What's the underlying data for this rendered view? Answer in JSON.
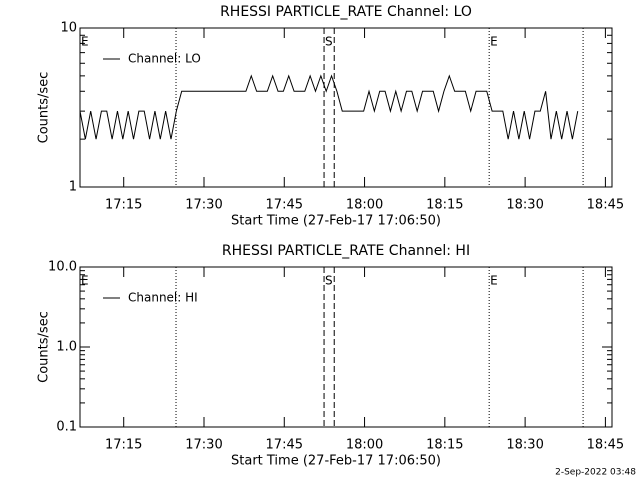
{
  "chart_data": [
    {
      "type": "line",
      "title": "RHESSI PARTICLE_RATE Channel: LO",
      "xlabel": "Start Time (27-Feb-17 17:06:50)",
      "ylabel": "Counts/sec",
      "log_y": true,
      "ylim": [
        1,
        10
      ],
      "yticks": [
        1,
        10
      ],
      "xlim": [
        0,
        99.4
      ],
      "xticks": [
        {
          "value": 8.1667,
          "label": "17:15"
        },
        {
          "value": 23.1667,
          "label": "17:30"
        },
        {
          "value": 38.1667,
          "label": "17:45"
        },
        {
          "value": 53.1667,
          "label": "18:00"
        },
        {
          "value": 68.1667,
          "label": "18:15"
        },
        {
          "value": 83.1667,
          "label": "18:30"
        },
        {
          "value": 98.1667,
          "label": "18:45"
        }
      ],
      "annotations": [
        {
          "text": "E",
          "x": 0
        },
        {
          "text": "S",
          "x": 45.6
        },
        {
          "text": "E",
          "x": 76.45
        }
      ],
      "dotted_lines": [
        17.94,
        76.45,
        94.0
      ],
      "dashed_lines": [
        45.6,
        47.5
      ],
      "legend": "upper left",
      "x": [
        0,
        1,
        2,
        3,
        4,
        5,
        6,
        7,
        8,
        9,
        10,
        11,
        12,
        13,
        14,
        15,
        16,
        17,
        18,
        19,
        20,
        21,
        22,
        23,
        24,
        25,
        26,
        27,
        28,
        29,
        30,
        31,
        32,
        33,
        34,
        35,
        36,
        37,
        38,
        39,
        40,
        41,
        42,
        43,
        44,
        45,
        46,
        47,
        48,
        49,
        50,
        51,
        52,
        53,
        54,
        55,
        56,
        57,
        58,
        59,
        60,
        61,
        62,
        63,
        64,
        65,
        66,
        67,
        68,
        69,
        70,
        71,
        72,
        73,
        74,
        75,
        76,
        77,
        78,
        79,
        80,
        81,
        82,
        83,
        84,
        85,
        86,
        87,
        88,
        89,
        90,
        91,
        92,
        93
      ],
      "series": [
        {
          "name": "Channel: LO",
          "color": "#000000",
          "values": [
            3,
            2,
            3,
            2,
            3,
            3,
            2,
            3,
            2,
            3,
            2,
            3,
            3,
            2,
            3,
            2,
            3,
            2,
            3,
            4,
            4,
            4,
            4,
            4,
            4,
            4,
            4,
            4,
            4,
            4,
            4,
            4,
            5,
            4,
            4,
            4,
            5,
            4,
            4,
            5,
            4,
            4,
            4,
            5,
            4,
            5,
            4,
            5,
            4,
            3,
            3,
            3,
            3,
            3,
            4,
            3,
            4,
            4,
            3,
            4,
            3,
            4,
            4,
            3,
            4,
            4,
            4,
            3,
            4,
            5,
            4,
            4,
            4,
            3,
            4,
            4,
            4,
            3,
            3,
            3,
            2,
            3,
            2,
            3,
            2,
            3,
            3,
            4,
            2,
            3,
            2,
            3,
            2,
            3
          ]
        }
      ]
    },
    {
      "type": "line",
      "title": "RHESSI PARTICLE_RATE Channel: HI",
      "xlabel": "Start Time (27-Feb-17 17:06:50)",
      "ylabel": "Counts/sec",
      "log_y": true,
      "ylim": [
        0.1,
        10
      ],
      "yticks": [
        0.1,
        {
          "value": 1,
          "label": "1.0"
        },
        {
          "value": 10,
          "label": "10.0"
        }
      ],
      "xlim": [
        0,
        99.4
      ],
      "xticks": [
        {
          "value": 8.1667,
          "label": "17:15"
        },
        {
          "value": 23.1667,
          "label": "17:30"
        },
        {
          "value": 38.1667,
          "label": "17:45"
        },
        {
          "value": 53.1667,
          "label": "18:00"
        },
        {
          "value": 68.1667,
          "label": "18:15"
        },
        {
          "value": 83.1667,
          "label": "18:30"
        },
        {
          "value": 98.1667,
          "label": "18:45"
        }
      ],
      "annotations": [
        {
          "text": "E",
          "x": 0
        },
        {
          "text": "S",
          "x": 45.6
        },
        {
          "text": "E",
          "x": 76.45
        }
      ],
      "dotted_lines": [
        17.94,
        76.45,
        94.0
      ],
      "dashed_lines": [
        45.6,
        47.5
      ],
      "legend": "upper left",
      "x": [],
      "series": [
        {
          "name": "Channel: HI",
          "color": "#000000",
          "values": []
        }
      ]
    }
  ],
  "footer": "2-Sep-2022 03:48"
}
